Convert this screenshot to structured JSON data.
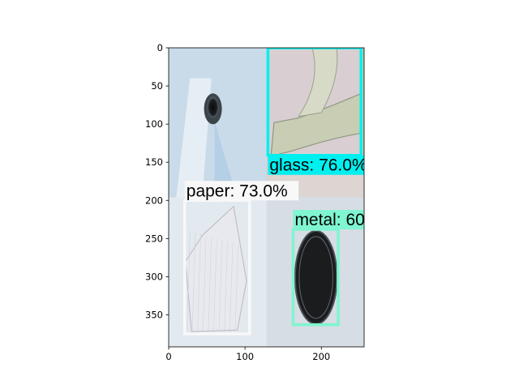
{
  "chart_data": {
    "type": "image",
    "xlim": [
      0,
      256
    ],
    "ylim": [
      392,
      0
    ],
    "xticks": [
      "0",
      "100",
      "200"
    ],
    "yticks": [
      "0",
      "50",
      "100",
      "150",
      "200",
      "250",
      "300",
      "350"
    ],
    "xtick_values": [
      0,
      100,
      200
    ],
    "ytick_values": [
      0,
      50,
      100,
      150,
      200,
      250,
      300,
      350
    ],
    "quadrants": [
      {
        "name": "top-left",
        "x": [
          0,
          128
        ],
        "y": [
          0,
          196
        ],
        "bg": "#c9dbe9",
        "object": "bottle-neck-top-view"
      },
      {
        "name": "top-right",
        "x": [
          128,
          256
        ],
        "y": [
          0,
          196
        ],
        "bg": "#d9cfd2",
        "object": "glass-bottle"
      },
      {
        "name": "bottom-left",
        "x": [
          0,
          128
        ],
        "y": [
          196,
          392
        ],
        "bg": "#e2e9ef",
        "object": "paper-sheet"
      },
      {
        "name": "bottom-right",
        "x": [
          128,
          256
        ],
        "y": [
          196,
          392
        ],
        "bg": "#d7dde4",
        "object": "metal-lid"
      }
    ],
    "detections": [
      {
        "label": "glass: 76.0%",
        "x0": 130,
        "y0": 0,
        "x1": 252,
        "y1": 141,
        "color": "#00f0f0"
      },
      {
        "label": "paper: 73.0%",
        "x0": 21,
        "y0": 200,
        "x1": 106,
        "y1": 375,
        "color": "#f8f8f8"
      },
      {
        "label": "metal: 60",
        "x0": 163,
        "y0": 238,
        "x1": 222,
        "y1": 363,
        "color": "#7ff5d0"
      }
    ]
  }
}
